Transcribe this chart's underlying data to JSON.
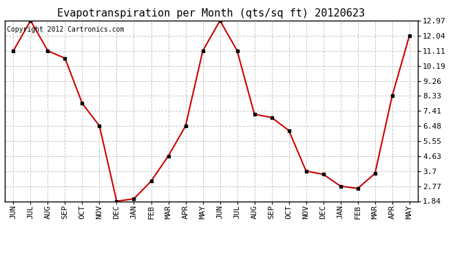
{
  "title": "Evapotranspiration per Month (qts/sq ft) 20120623",
  "copyright": "Copyright 2012 Cartronics.com",
  "months": [
    "JUN",
    "JUL",
    "AUG",
    "SEP",
    "OCT",
    "NOV",
    "DEC",
    "JAN",
    "FEB",
    "MAR",
    "APR",
    "MAY",
    "JUN",
    "JUL",
    "AUG",
    "SEP",
    "OCT",
    "NOV",
    "DEC",
    "JAN",
    "FEB",
    "MAR",
    "APR",
    "MAY"
  ],
  "values": [
    11.11,
    12.97,
    11.11,
    10.65,
    7.87,
    6.48,
    1.84,
    1.99,
    3.08,
    4.63,
    6.48,
    11.11,
    12.97,
    11.11,
    7.2,
    7.0,
    6.2,
    3.7,
    3.5,
    2.77,
    2.63,
    3.55,
    8.33,
    12.04
  ],
  "yticks": [
    1.84,
    2.77,
    3.7,
    4.63,
    5.55,
    6.48,
    7.41,
    8.33,
    9.26,
    10.19,
    11.11,
    12.04,
    12.97
  ],
  "ylim": [
    1.84,
    12.97
  ],
  "line_color": "#cc0000",
  "marker_color": "#000000",
  "bg_color": "#ffffff",
  "grid_color": "#c8c8c8",
  "title_fontsize": 11,
  "copyright_fontsize": 7,
  "tick_fontsize": 8
}
